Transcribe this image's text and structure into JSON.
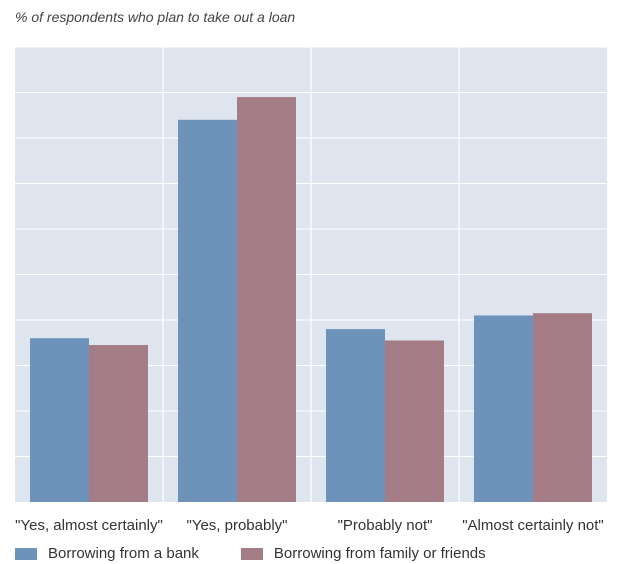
{
  "chart_data": {
    "type": "bar",
    "title": "% of respondents who plan to take out a loan",
    "categories": [
      "\"Yes, almost certainly\"",
      "\"Yes, probably\"",
      "\"Probably not\"",
      "\"Almost certainly not\""
    ],
    "series": [
      {
        "name": "Borrowing from a bank",
        "color": "#6d93bb",
        "values": [
          3.6,
          8.4,
          3.8,
          4.1
        ]
      },
      {
        "name": "Borrowing from family or friends",
        "color": "#a37c85",
        "values": [
          3.45,
          8.9,
          3.55,
          4.15
        ]
      }
    ],
    "ylim": [
      0,
      10
    ],
    "y_gridlines": 10,
    "grid": true,
    "background_color": "#dfe5ee",
    "legend_position": "bottom-left"
  }
}
